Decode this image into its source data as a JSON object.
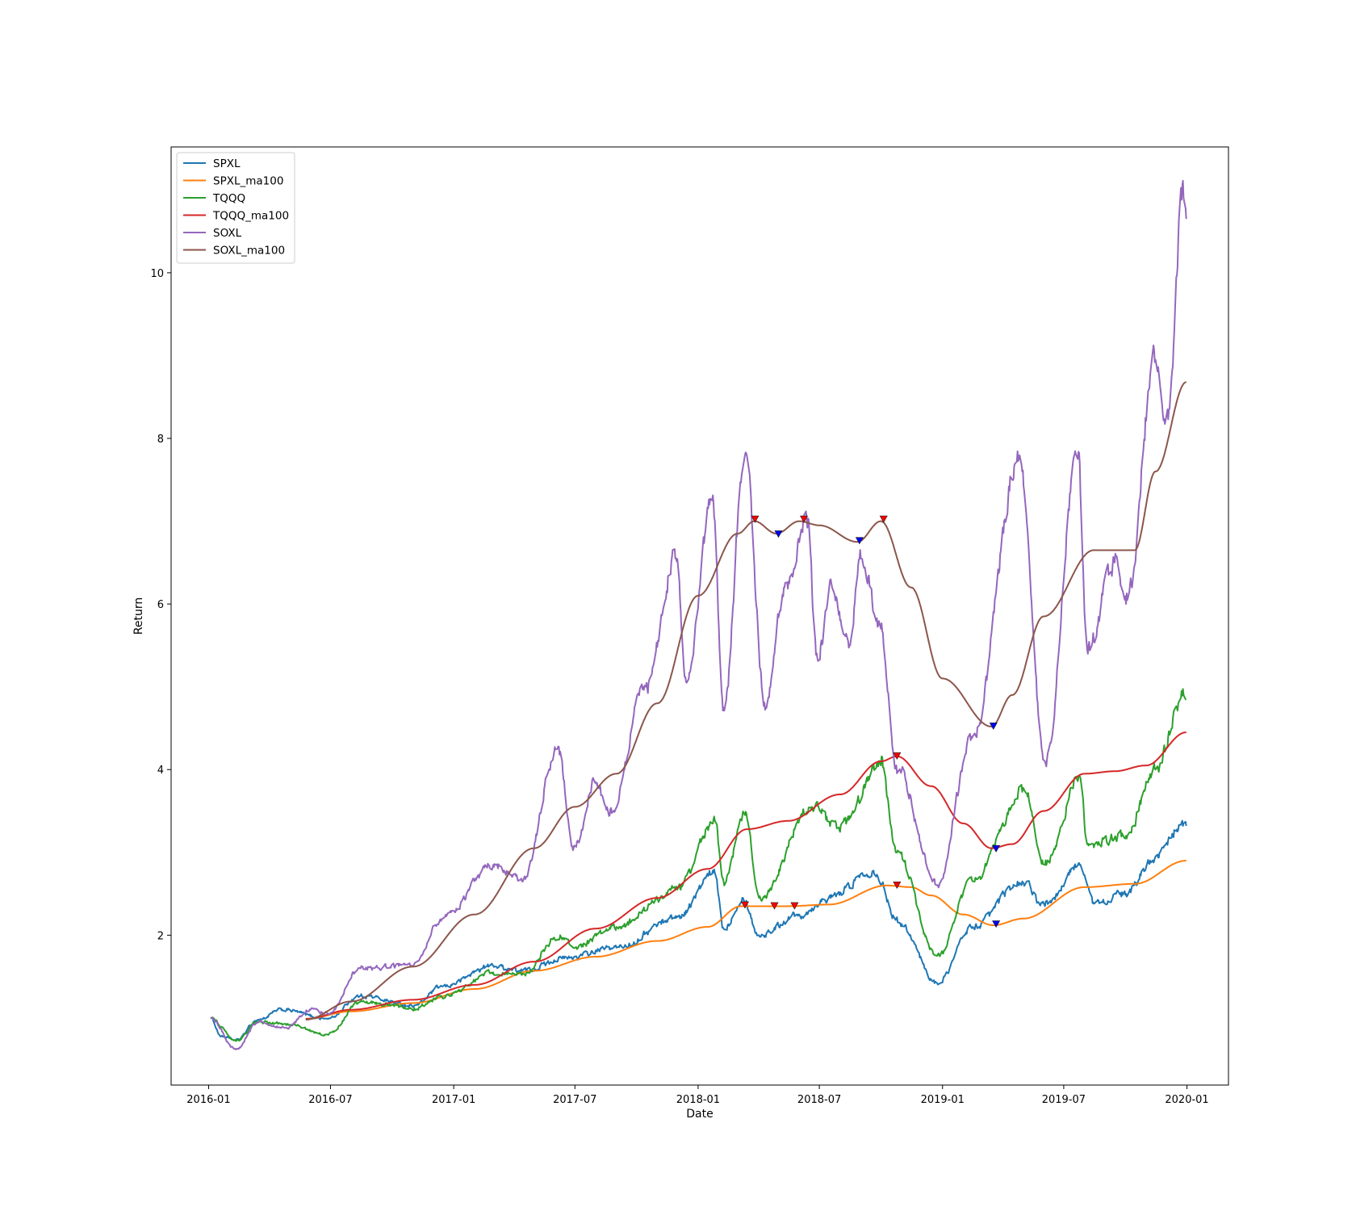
{
  "chart_data": {
    "type": "line",
    "title": "",
    "xlabel": "Date",
    "ylabel": "Return",
    "x_ticks": [
      "2016-01",
      "2016-07",
      "2017-01",
      "2017-07",
      "2018-01",
      "2018-07",
      "2019-01",
      "2019-07",
      "2020-01"
    ],
    "y_ticks": [
      "2",
      "4",
      "6",
      "8",
      "10"
    ],
    "xlim": [
      "2015-11-06",
      "2020-03-03"
    ],
    "ylim": [
      0.19,
      11.52
    ],
    "grid": false,
    "legend_position": "upper-left",
    "series": [
      {
        "name": "SPXL",
        "color": "#1f77b4",
        "style": "noisy",
        "points": [
          [
            "2016-01-04",
            1.0
          ],
          [
            "2016-01-20",
            0.78
          ],
          [
            "2016-02-11",
            0.73
          ],
          [
            "2016-03-15",
            0.98
          ],
          [
            "2016-04-20",
            1.1
          ],
          [
            "2016-06-27",
            0.99
          ],
          [
            "2016-08-15",
            1.27
          ],
          [
            "2016-11-03",
            1.15
          ],
          [
            "2016-12-15",
            1.38
          ],
          [
            "2017-03-01",
            1.63
          ],
          [
            "2017-04-13",
            1.57
          ],
          [
            "2017-06-15",
            1.72
          ],
          [
            "2017-09-01",
            1.85
          ],
          [
            "2017-12-01",
            2.22
          ],
          [
            "2018-01-26",
            2.75
          ],
          [
            "2018-02-08",
            2.08
          ],
          [
            "2018-03-09",
            2.45
          ],
          [
            "2018-04-02",
            2.0
          ],
          [
            "2018-06-01",
            2.25
          ],
          [
            "2018-07-15",
            2.45
          ],
          [
            "2018-09-20",
            2.78
          ],
          [
            "2018-10-29",
            2.15
          ],
          [
            "2018-12-24",
            1.42
          ],
          [
            "2019-02-15",
            2.1
          ],
          [
            "2019-04-30",
            2.65
          ],
          [
            "2019-06-03",
            2.35
          ],
          [
            "2019-07-26",
            2.85
          ],
          [
            "2019-08-15",
            2.38
          ],
          [
            "2019-10-02",
            2.5
          ],
          [
            "2019-11-15",
            2.95
          ],
          [
            "2019-12-27",
            3.35
          ],
          [
            "2019-12-31",
            3.32
          ]
        ]
      },
      {
        "name": "SPXL_ma100",
        "color": "#ff7f0e",
        "style": "smooth",
        "points": [
          [
            "2016-05-25",
            0.99
          ],
          [
            "2016-08-01",
            1.08
          ],
          [
            "2016-11-01",
            1.18
          ],
          [
            "2017-02-01",
            1.35
          ],
          [
            "2017-05-01",
            1.57
          ],
          [
            "2017-08-01",
            1.74
          ],
          [
            "2017-11-01",
            1.93
          ],
          [
            "2018-01-15",
            2.1
          ],
          [
            "2018-03-06",
            2.35
          ],
          [
            "2018-05-15",
            2.35
          ],
          [
            "2018-07-15",
            2.37
          ],
          [
            "2018-10-10",
            2.6
          ],
          [
            "2018-11-15",
            2.58
          ],
          [
            "2018-12-15",
            2.48
          ],
          [
            "2019-02-01",
            2.25
          ],
          [
            "2019-03-18",
            2.12
          ],
          [
            "2019-05-01",
            2.2
          ],
          [
            "2019-08-01",
            2.58
          ],
          [
            "2019-10-15",
            2.62
          ],
          [
            "2019-12-31",
            2.9
          ]
        ],
        "markers": [
          {
            "x": "2018-03-12",
            "y": 2.36,
            "kind": "sell"
          },
          {
            "x": "2018-04-25",
            "y": 2.35,
            "kind": "sell"
          },
          {
            "x": "2018-05-25",
            "y": 2.35,
            "kind": "sell"
          },
          {
            "x": "2018-10-25",
            "y": 2.6,
            "kind": "sell"
          },
          {
            "x": "2019-03-22",
            "y": 2.13,
            "kind": "buy"
          }
        ]
      },
      {
        "name": "TQQQ",
        "color": "#2ca02c",
        "style": "noisy",
        "points": [
          [
            "2016-01-04",
            1.0
          ],
          [
            "2016-02-11",
            0.72
          ],
          [
            "2016-03-15",
            0.95
          ],
          [
            "2016-04-25",
            0.93
          ],
          [
            "2016-06-27",
            0.8
          ],
          [
            "2016-08-15",
            1.2
          ],
          [
            "2016-11-03",
            1.12
          ],
          [
            "2016-12-15",
            1.25
          ],
          [
            "2017-03-01",
            1.55
          ],
          [
            "2017-04-13",
            1.52
          ],
          [
            "2017-06-09",
            2.0
          ],
          [
            "2017-06-29",
            1.85
          ],
          [
            "2017-09-01",
            2.1
          ],
          [
            "2017-12-01",
            2.55
          ],
          [
            "2018-01-26",
            3.38
          ],
          [
            "2018-02-08",
            2.65
          ],
          [
            "2018-03-12",
            3.45
          ],
          [
            "2018-04-02",
            2.45
          ],
          [
            "2018-06-20",
            3.55
          ],
          [
            "2018-07-30",
            3.3
          ],
          [
            "2018-10-01",
            4.05
          ],
          [
            "2018-10-24",
            3.0
          ],
          [
            "2018-12-24",
            1.75
          ],
          [
            "2019-02-15",
            2.65
          ],
          [
            "2019-05-03",
            3.75
          ],
          [
            "2019-06-03",
            2.85
          ],
          [
            "2019-07-26",
            3.9
          ],
          [
            "2019-08-05",
            3.1
          ],
          [
            "2019-10-02",
            3.2
          ],
          [
            "2019-11-15",
            4.0
          ],
          [
            "2019-12-27",
            4.9
          ],
          [
            "2019-12-31",
            4.85
          ]
        ]
      },
      {
        "name": "TQQQ_ma100",
        "color": "#d62728",
        "style": "smooth",
        "points": [
          [
            "2016-05-25",
            0.99
          ],
          [
            "2016-08-01",
            1.1
          ],
          [
            "2016-11-01",
            1.22
          ],
          [
            "2017-02-01",
            1.4
          ],
          [
            "2017-05-01",
            1.68
          ],
          [
            "2017-08-01",
            2.08
          ],
          [
            "2017-11-01",
            2.45
          ],
          [
            "2018-01-15",
            2.8
          ],
          [
            "2018-03-15",
            3.28
          ],
          [
            "2018-05-15",
            3.38
          ],
          [
            "2018-08-01",
            3.7
          ],
          [
            "2018-10-01",
            4.1
          ],
          [
            "2018-10-25",
            4.16
          ],
          [
            "2018-12-15",
            3.8
          ],
          [
            "2019-02-01",
            3.35
          ],
          [
            "2019-03-15",
            3.05
          ],
          [
            "2019-04-15",
            3.1
          ],
          [
            "2019-06-01",
            3.5
          ],
          [
            "2019-08-01",
            3.95
          ],
          [
            "2019-09-15",
            3.98
          ],
          [
            "2019-11-01",
            4.05
          ],
          [
            "2019-12-31",
            4.45
          ]
        ],
        "markers": [
          {
            "x": "2018-10-25",
            "y": 4.16,
            "kind": "sell"
          },
          {
            "x": "2019-03-22",
            "y": 3.04,
            "kind": "buy"
          }
        ]
      },
      {
        "name": "SOXL",
        "color": "#9467bd",
        "style": "noisy",
        "points": [
          [
            "2016-01-04",
            1.0
          ],
          [
            "2016-02-11",
            0.62
          ],
          [
            "2016-03-15",
            0.95
          ],
          [
            "2016-04-25",
            0.88
          ],
          [
            "2016-06-01",
            1.1
          ],
          [
            "2016-06-27",
            1.05
          ],
          [
            "2016-08-15",
            1.6
          ],
          [
            "2016-11-03",
            1.65
          ],
          [
            "2016-12-15",
            2.2
          ],
          [
            "2017-03-01",
            2.85
          ],
          [
            "2017-04-13",
            2.65
          ],
          [
            "2017-06-05",
            4.25
          ],
          [
            "2017-06-29",
            3.05
          ],
          [
            "2017-08-01",
            3.85
          ],
          [
            "2017-08-22",
            3.45
          ],
          [
            "2017-10-15",
            5.0
          ],
          [
            "2017-11-28",
            6.55
          ],
          [
            "2017-12-15",
            5.05
          ],
          [
            "2018-01-22",
            7.25
          ],
          [
            "2018-02-08",
            4.75
          ],
          [
            "2018-03-12",
            7.8
          ],
          [
            "2018-04-12",
            4.75
          ],
          [
            "2018-05-10",
            6.2
          ],
          [
            "2018-06-12",
            7.05
          ],
          [
            "2018-06-28",
            5.35
          ],
          [
            "2018-07-20",
            6.2
          ],
          [
            "2018-08-15",
            5.5
          ],
          [
            "2018-09-01",
            6.55
          ],
          [
            "2018-10-01",
            5.7
          ],
          [
            "2018-10-24",
            4.05
          ],
          [
            "2018-12-24",
            2.6
          ],
          [
            "2019-02-15",
            4.4
          ],
          [
            "2019-04-25",
            7.75
          ],
          [
            "2019-06-03",
            4.1
          ],
          [
            "2019-07-22",
            7.75
          ],
          [
            "2019-08-05",
            5.45
          ],
          [
            "2019-09-15",
            6.5
          ],
          [
            "2019-10-02",
            6.0
          ],
          [
            "2019-11-15",
            8.95
          ],
          [
            "2019-12-02",
            8.3
          ],
          [
            "2019-12-27",
            10.9
          ],
          [
            "2019-12-31",
            10.65
          ]
        ]
      },
      {
        "name": "SOXL_ma100",
        "color": "#8c564b",
        "style": "smooth",
        "points": [
          [
            "2016-05-25",
            0.98
          ],
          [
            "2016-08-01",
            1.2
          ],
          [
            "2016-11-01",
            1.62
          ],
          [
            "2017-02-01",
            2.25
          ],
          [
            "2017-05-01",
            3.05
          ],
          [
            "2017-07-01",
            3.55
          ],
          [
            "2017-09-01",
            3.95
          ],
          [
            "2017-11-01",
            4.8
          ],
          [
            "2018-01-01",
            6.1
          ],
          [
            "2018-03-01",
            6.85
          ],
          [
            "2018-03-26",
            7.0
          ],
          [
            "2018-04-28",
            6.85
          ],
          [
            "2018-06-01",
            7.0
          ],
          [
            "2018-07-01",
            6.95
          ],
          [
            "2018-08-27",
            6.75
          ],
          [
            "2018-10-01",
            7.0
          ],
          [
            "2018-11-15",
            6.2
          ],
          [
            "2019-01-01",
            5.1
          ],
          [
            "2019-03-15",
            4.52
          ],
          [
            "2019-04-15",
            4.9
          ],
          [
            "2019-06-01",
            5.85
          ],
          [
            "2019-08-15",
            6.65
          ],
          [
            "2019-10-15",
            6.65
          ],
          [
            "2019-11-15",
            7.6
          ],
          [
            "2019-12-31",
            8.68
          ]
        ],
        "markers": [
          {
            "x": "2018-03-27",
            "y": 7.02,
            "kind": "sell"
          },
          {
            "x": "2018-05-01",
            "y": 6.84,
            "kind": "buy"
          },
          {
            "x": "2018-06-08",
            "y": 7.02,
            "kind": "sell"
          },
          {
            "x": "2018-08-30",
            "y": 6.76,
            "kind": "buy"
          },
          {
            "x": "2018-10-05",
            "y": 7.02,
            "kind": "sell"
          },
          {
            "x": "2019-03-18",
            "y": 4.52,
            "kind": "buy"
          }
        ]
      }
    ]
  }
}
